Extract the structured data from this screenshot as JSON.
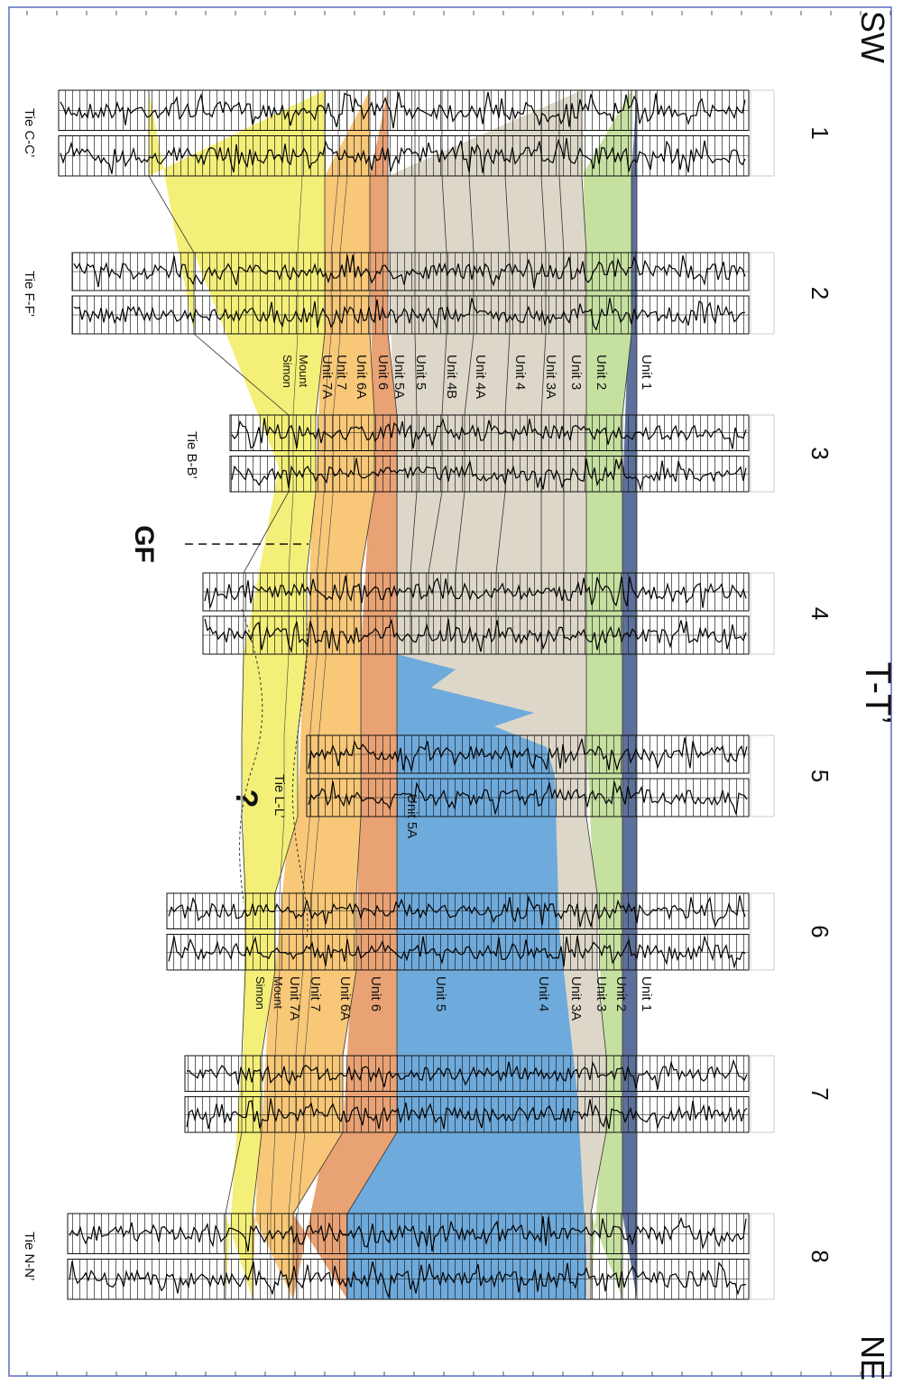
{
  "header": {
    "left_end": "SW",
    "right_end": "NE",
    "title": "T-T’"
  },
  "wells": [
    {
      "label": "1",
      "tie": "Tie C-C’"
    },
    {
      "label": "2",
      "tie": "Tie F-F’"
    },
    {
      "label": "3",
      "tie": "Tie B-B’"
    },
    {
      "label": "4"
    },
    {
      "label": "5",
      "tie": "Tie L-L’"
    },
    {
      "label": "6"
    },
    {
      "label": "7"
    },
    {
      "label": "8",
      "tie": "Tie N-N’"
    }
  ],
  "unit_labels_well_2": [
    "Unit 1",
    "Unit 2",
    "Unit 3",
    "Unit 3A",
    "Unit 4",
    "Unit 4A",
    "Unit 4B",
    "Unit 5",
    "Unit 5A",
    "Unit 6",
    "Unit 6A",
    "Unit 7",
    "Unit 7A",
    "Mount",
    "Simon"
  ],
  "unit_labels_well_6": [
    "Unit 1",
    "Unit 2",
    "Unit 3",
    "Unit 3A",
    "Unit 4",
    "Unit 5",
    "Unit 6",
    "Unit 6A",
    "Unit 7",
    "Unit 7A",
    "Mount",
    "Simon"
  ],
  "annotations": {
    "fault": "GF",
    "uncertain": "?",
    "unit_5a": "Unit 5A"
  }
}
